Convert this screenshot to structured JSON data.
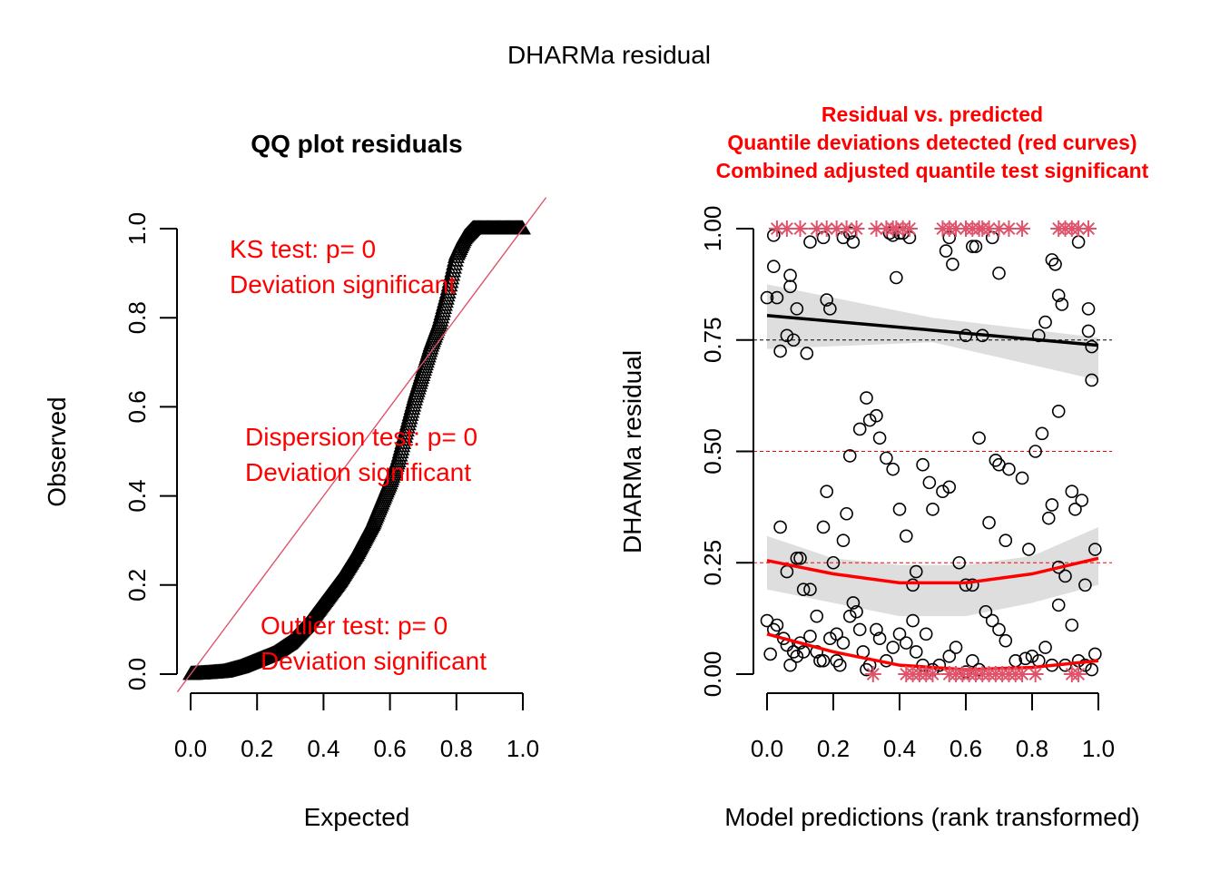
{
  "title": "DHARMa residual",
  "chart_data": [
    {
      "type": "scatter",
      "title": "QQ plot residuals",
      "xlabel": "Expected",
      "ylabel": "Observed",
      "xlim": [
        0,
        1
      ],
      "ylim": [
        0,
        1
      ],
      "x_ticks": [
        "0.0",
        "0.2",
        "0.4",
        "0.6",
        "0.8",
        "1.0"
      ],
      "y_ticks": [
        "0.0",
        "0.2",
        "0.4",
        "0.6",
        "0.8",
        "1.0"
      ],
      "marker": "triangle",
      "reference_line": {
        "slope": 1,
        "intercept": 0,
        "color": "#DF536B"
      },
      "curve": {
        "x": [
          0.0,
          0.05,
          0.1,
          0.15,
          0.2,
          0.25,
          0.3,
          0.35,
          0.4,
          0.45,
          0.5,
          0.55,
          0.6,
          0.625,
          0.65,
          0.675,
          0.7,
          0.725,
          0.75,
          0.775,
          0.8,
          0.825,
          0.85,
          0.875,
          0.9,
          0.95,
          1.0
        ],
        "y": [
          0.0,
          0.002,
          0.005,
          0.015,
          0.03,
          0.045,
          0.07,
          0.11,
          0.16,
          0.21,
          0.27,
          0.34,
          0.43,
          0.48,
          0.55,
          0.62,
          0.68,
          0.74,
          0.79,
          0.86,
          0.94,
          0.98,
          1.0,
          1.0,
          1.0,
          1.0,
          1.0
        ]
      },
      "annotations": [
        {
          "lines": [
            "KS test: p= 0",
            "Deviation  significant"
          ],
          "color": "#FF0000"
        },
        {
          "lines": [
            "Dispersion test: p= 0",
            "Deviation  significant"
          ],
          "color": "#FF0000"
        },
        {
          "lines": [
            "Outlier test: p= 0",
            "Deviation  significant"
          ],
          "color": "#FF0000"
        }
      ]
    },
    {
      "type": "scatter",
      "title_lines": [
        "Residual vs. predicted",
        "Quantile deviations detected (red curves)",
        "Combined adjusted quantile test significant"
      ],
      "title_color": "#FF0000",
      "xlabel": "Model predictions (rank transformed)",
      "ylabel": "DHARMa residual",
      "xlim": [
        0,
        1
      ],
      "ylim": [
        0,
        1
      ],
      "x_ticks": [
        "0.0",
        "0.2",
        "0.4",
        "0.6",
        "0.8",
        "1.0"
      ],
      "y_ticks": [
        "0.00",
        "0.25",
        "0.50",
        "0.75",
        "1.00"
      ],
      "reference_lines": [
        {
          "y": 0.25,
          "color": "#FF0000",
          "style": "dashed"
        },
        {
          "y": 0.5,
          "color": "#FF0000",
          "style": "dashed"
        },
        {
          "y": 0.75,
          "color": "#000000",
          "style": "dashed"
        }
      ],
      "quantile_curves": [
        {
          "quantile": 0.75,
          "color": "#000000",
          "x": [
            0,
            0.5,
            1
          ],
          "y": [
            0.805,
            0.772,
            0.738
          ],
          "band_low": [
            0.73,
            0.745,
            0.66
          ],
          "band_high": [
            0.875,
            0.8,
            0.755
          ]
        },
        {
          "quantile": 0.25,
          "color": "#FF0000",
          "x": [
            0,
            0.2,
            0.4,
            0.6,
            0.8,
            1.0
          ],
          "y": [
            0.255,
            0.225,
            0.205,
            0.205,
            0.225,
            0.26
          ],
          "band_low": [
            0.19,
            0.16,
            0.13,
            0.13,
            0.16,
            0.2
          ],
          "band_high": [
            0.31,
            0.26,
            0.245,
            0.245,
            0.265,
            0.33
          ]
        },
        {
          "quantile": 0.0,
          "color": "#FF0000",
          "x": [
            0,
            0.2,
            0.4,
            0.6,
            0.8,
            1.0
          ],
          "y": [
            0.09,
            0.05,
            0.02,
            0.01,
            0.015,
            0.03
          ],
          "band_low": [
            0.06,
            0.03,
            0.005,
            0.0,
            0.005,
            0.015
          ],
          "band_high": [
            0.12,
            0.07,
            0.035,
            0.02,
            0.03,
            0.06
          ]
        }
      ],
      "points": [
        [
          0.0,
          0.845
        ],
        [
          0.02,
          0.915
        ],
        [
          0.02,
          0.985
        ],
        [
          0.03,
          0.845
        ],
        [
          0.04,
          0.725
        ],
        [
          0.06,
          0.76
        ],
        [
          0.07,
          0.895
        ],
        [
          0.07,
          0.87
        ],
        [
          0.08,
          0.75
        ],
        [
          0.09,
          0.82
        ],
        [
          0.12,
          0.72
        ],
        [
          0.13,
          0.97
        ],
        [
          0.17,
          0.98
        ],
        [
          0.18,
          0.84
        ],
        [
          0.19,
          0.82
        ],
        [
          0.23,
          0.98
        ],
        [
          0.25,
          0.99
        ],
        [
          0.26,
          0.97
        ],
        [
          0.37,
          0.99
        ],
        [
          0.38,
          0.985
        ],
        [
          0.39,
          0.89
        ],
        [
          0.4,
          0.99
        ],
        [
          0.41,
          0.99
        ],
        [
          0.43,
          0.98
        ],
        [
          0.54,
          0.95
        ],
        [
          0.55,
          0.98
        ],
        [
          0.56,
          0.92
        ],
        [
          0.62,
          0.96
        ],
        [
          0.63,
          0.96
        ],
        [
          0.68,
          0.98
        ],
        [
          0.7,
          0.9
        ],
        [
          0.86,
          0.93
        ],
        [
          0.87,
          0.92
        ],
        [
          0.94,
          0.97
        ],
        [
          0.88,
          0.85
        ],
        [
          0.89,
          0.83
        ],
        [
          0.97,
          0.82
        ],
        [
          0.97,
          0.77
        ],
        [
          0.98,
          0.735
        ],
        [
          0.98,
          0.66
        ],
        [
          0.84,
          0.79
        ],
        [
          0.82,
          0.76
        ],
        [
          0.6,
          0.76
        ],
        [
          0.65,
          0.76
        ],
        [
          0.04,
          0.33
        ],
        [
          0.06,
          0.23
        ],
        [
          0.09,
          0.26
        ],
        [
          0.1,
          0.26
        ],
        [
          0.11,
          0.19
        ],
        [
          0.13,
          0.19
        ],
        [
          0.15,
          0.13
        ],
        [
          0.17,
          0.33
        ],
        [
          0.18,
          0.41
        ],
        [
          0.2,
          0.25
        ],
        [
          0.21,
          0.09
        ],
        [
          0.23,
          0.3
        ],
        [
          0.24,
          0.36
        ],
        [
          0.25,
          0.49
        ],
        [
          0.28,
          0.55
        ],
        [
          0.3,
          0.62
        ],
        [
          0.31,
          0.57
        ],
        [
          0.33,
          0.58
        ],
        [
          0.34,
          0.53
        ],
        [
          0.36,
          0.485
        ],
        [
          0.38,
          0.46
        ],
        [
          0.4,
          0.37
        ],
        [
          0.42,
          0.31
        ],
        [
          0.44,
          0.2
        ],
        [
          0.45,
          0.23
        ],
        [
          0.47,
          0.47
        ],
        [
          0.49,
          0.43
        ],
        [
          0.5,
          0.37
        ],
        [
          0.53,
          0.41
        ],
        [
          0.55,
          0.42
        ],
        [
          0.58,
          0.25
        ],
        [
          0.6,
          0.2
        ],
        [
          0.62,
          0.2
        ],
        [
          0.64,
          0.53
        ],
        [
          0.67,
          0.34
        ],
        [
          0.69,
          0.48
        ],
        [
          0.7,
          0.47
        ],
        [
          0.72,
          0.3
        ],
        [
          0.73,
          0.46
        ],
        [
          0.77,
          0.44
        ],
        [
          0.79,
          0.28
        ],
        [
          0.81,
          0.5
        ],
        [
          0.83,
          0.54
        ],
        [
          0.85,
          0.35
        ],
        [
          0.86,
          0.38
        ],
        [
          0.88,
          0.59
        ],
        [
          0.88,
          0.24
        ],
        [
          0.9,
          0.22
        ],
        [
          0.92,
          0.41
        ],
        [
          0.93,
          0.37
        ],
        [
          0.95,
          0.39
        ],
        [
          0.96,
          0.2
        ],
        [
          0.99,
          0.28
        ],
        [
          0.0,
          0.12
        ],
        [
          0.01,
          0.045
        ],
        [
          0.02,
          0.1
        ],
        [
          0.03,
          0.11
        ],
        [
          0.05,
          0.08
        ],
        [
          0.06,
          0.065
        ],
        [
          0.07,
          0.02
        ],
        [
          0.08,
          0.05
        ],
        [
          0.09,
          0.04
        ],
        [
          0.1,
          0.07
        ],
        [
          0.11,
          0.05
        ],
        [
          0.13,
          0.085
        ],
        [
          0.15,
          0.05
        ],
        [
          0.16,
          0.03
        ],
        [
          0.17,
          0.03
        ],
        [
          0.19,
          0.08
        ],
        [
          0.21,
          0.03
        ],
        [
          0.22,
          0.02
        ],
        [
          0.23,
          0.07
        ],
        [
          0.25,
          0.13
        ],
        [
          0.26,
          0.16
        ],
        [
          0.27,
          0.14
        ],
        [
          0.28,
          0.1
        ],
        [
          0.29,
          0.05
        ],
        [
          0.3,
          0.01
        ],
        [
          0.31,
          0.02
        ],
        [
          0.33,
          0.1
        ],
        [
          0.34,
          0.08
        ],
        [
          0.36,
          0.03
        ],
        [
          0.38,
          0.06
        ],
        [
          0.4,
          0.09
        ],
        [
          0.42,
          0.07
        ],
        [
          0.44,
          0.12
        ],
        [
          0.45,
          0.05
        ],
        [
          0.47,
          0.02
        ],
        [
          0.48,
          0.09
        ],
        [
          0.5,
          0.01
        ],
        [
          0.52,
          0.02
        ],
        [
          0.55,
          0.04
        ],
        [
          0.57,
          0.06
        ],
        [
          0.6,
          0.005
        ],
        [
          0.62,
          0.03
        ],
        [
          0.64,
          0.01
        ],
        [
          0.66,
          0.14
        ],
        [
          0.68,
          0.12
        ],
        [
          0.7,
          0.1
        ],
        [
          0.72,
          0.075
        ],
        [
          0.75,
          0.03
        ],
        [
          0.78,
          0.035
        ],
        [
          0.8,
          0.04
        ],
        [
          0.82,
          0.03
        ],
        [
          0.84,
          0.06
        ],
        [
          0.86,
          0.02
        ],
        [
          0.88,
          0.155
        ],
        [
          0.9,
          0.02
        ],
        [
          0.92,
          0.11
        ],
        [
          0.94,
          0.03
        ],
        [
          0.96,
          0.02
        ],
        [
          0.98,
          0.01
        ],
        [
          0.99,
          0.045
        ]
      ],
      "outliers": {
        "color": "#DF536B",
        "marker": "asterisk",
        "top_x": [
          0.03,
          0.06,
          0.1,
          0.15,
          0.18,
          0.21,
          0.24,
          0.27,
          0.33,
          0.36,
          0.38,
          0.39,
          0.41,
          0.43,
          0.53,
          0.55,
          0.57,
          0.6,
          0.62,
          0.64,
          0.65,
          0.67,
          0.7,
          0.73,
          0.77,
          0.88,
          0.9,
          0.92,
          0.94,
          0.97
        ],
        "bottom_x": [
          0.32,
          0.42,
          0.44,
          0.46,
          0.48,
          0.5,
          0.55,
          0.57,
          0.59,
          0.61,
          0.63,
          0.65,
          0.67,
          0.69,
          0.71,
          0.73,
          0.75,
          0.77,
          0.81,
          0.92,
          0.94
        ]
      }
    }
  ]
}
